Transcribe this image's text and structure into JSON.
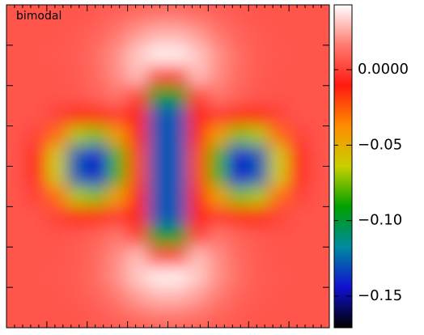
{
  "chart_data": {
    "type": "heatmap",
    "title": "bimodal",
    "z": [
      [
        0.006,
        0.006,
        0.006,
        0.006,
        0.008,
        0.01,
        0.013,
        0.015,
        0.015,
        0.013,
        0.01,
        0.008,
        0.006,
        0.006,
        0.006,
        0.006
      ],
      [
        0.006,
        0.006,
        0.006,
        0.008,
        0.01,
        0.016,
        0.023,
        0.028,
        0.028,
        0.023,
        0.016,
        0.01,
        0.008,
        0.006,
        0.006,
        0.006
      ],
      [
        0.006,
        0.006,
        0.007,
        0.008,
        0.013,
        0.021,
        0.032,
        0.04,
        0.04,
        0.032,
        0.021,
        0.013,
        0.008,
        0.007,
        0.006,
        0.006
      ],
      [
        0.006,
        0.006,
        0.006,
        0.008,
        0.012,
        0.02,
        0.03,
        0.003,
        0.003,
        0.03,
        0.02,
        0.012,
        0.008,
        0.006,
        0.006,
        0.006
      ],
      [
        0.006,
        0.006,
        0.006,
        0.007,
        0.01,
        0.015,
        0.001,
        -0.093,
        -0.093,
        0.001,
        0.015,
        0.01,
        0.007,
        0.006,
        0.006,
        0.006
      ],
      [
        0.006,
        0.006,
        0.001,
        -0.013,
        -0.015,
        -0.002,
        -0.012,
        -0.129,
        -0.129,
        -0.012,
        -0.002,
        -0.015,
        -0.013,
        0.001,
        0.006,
        0.006
      ],
      [
        0.006,
        0.001,
        -0.03,
        -0.068,
        -0.074,
        -0.044,
        -0.012,
        -0.129,
        -0.129,
        -0.012,
        -0.044,
        -0.074,
        -0.068,
        -0.03,
        0.001,
        0.006
      ],
      [
        0.006,
        -0.007,
        -0.062,
        -0.128,
        -0.143,
        -0.081,
        -0.021,
        -0.129,
        -0.129,
        -0.021,
        -0.081,
        -0.143,
        -0.128,
        -0.062,
        -0.007,
        0.006
      ],
      [
        0.006,
        -0.007,
        -0.062,
        -0.128,
        -0.143,
        -0.081,
        -0.021,
        -0.129,
        -0.129,
        -0.021,
        -0.081,
        -0.143,
        -0.128,
        -0.062,
        -0.007,
        0.006
      ],
      [
        0.006,
        0.001,
        -0.03,
        -0.068,
        -0.074,
        -0.044,
        -0.012,
        -0.129,
        -0.129,
        -0.012,
        -0.044,
        -0.074,
        -0.068,
        -0.03,
        0.001,
        0.006
      ],
      [
        0.006,
        0.006,
        0.001,
        -0.013,
        -0.015,
        -0.002,
        -0.012,
        -0.129,
        -0.129,
        -0.012,
        -0.002,
        -0.015,
        -0.013,
        0.001,
        0.006,
        0.006
      ],
      [
        0.006,
        0.006,
        0.006,
        0.007,
        0.01,
        0.015,
        0.001,
        -0.093,
        -0.093,
        0.001,
        0.015,
        0.01,
        0.007,
        0.006,
        0.006,
        0.006
      ],
      [
        0.006,
        0.006,
        0.006,
        0.008,
        0.012,
        0.02,
        0.03,
        0.003,
        0.003,
        0.03,
        0.02,
        0.012,
        0.008,
        0.006,
        0.006,
        0.006
      ],
      [
        0.006,
        0.006,
        0.007,
        0.008,
        0.013,
        0.021,
        0.032,
        0.04,
        0.04,
        0.032,
        0.021,
        0.013,
        0.008,
        0.007,
        0.006,
        0.006
      ],
      [
        0.006,
        0.006,
        0.006,
        0.008,
        0.01,
        0.016,
        0.023,
        0.028,
        0.028,
        0.023,
        0.016,
        0.01,
        0.008,
        0.006,
        0.006,
        0.006
      ],
      [
        0.006,
        0.006,
        0.006,
        0.006,
        0.008,
        0.01,
        0.013,
        0.015,
        0.015,
        0.013,
        0.01,
        0.008,
        0.006,
        0.006,
        0.006,
        0.006
      ]
    ],
    "zlim": [
      -0.171,
      0.043
    ],
    "zticks": [
      {
        "value": 0,
        "label": "0.0000"
      },
      {
        "value": -0.05,
        "label": "−0.05"
      },
      {
        "value": -0.1,
        "label": "−0.10"
      },
      {
        "value": -0.15,
        "label": "−0.15"
      }
    ],
    "colors": [
      "#000000",
      "#1010d0",
      "#008aa0",
      "#00a000",
      "#c8d000",
      "#ff8c00",
      "#ff1a10",
      "#ff7a70",
      "#ffffff"
    ]
  }
}
